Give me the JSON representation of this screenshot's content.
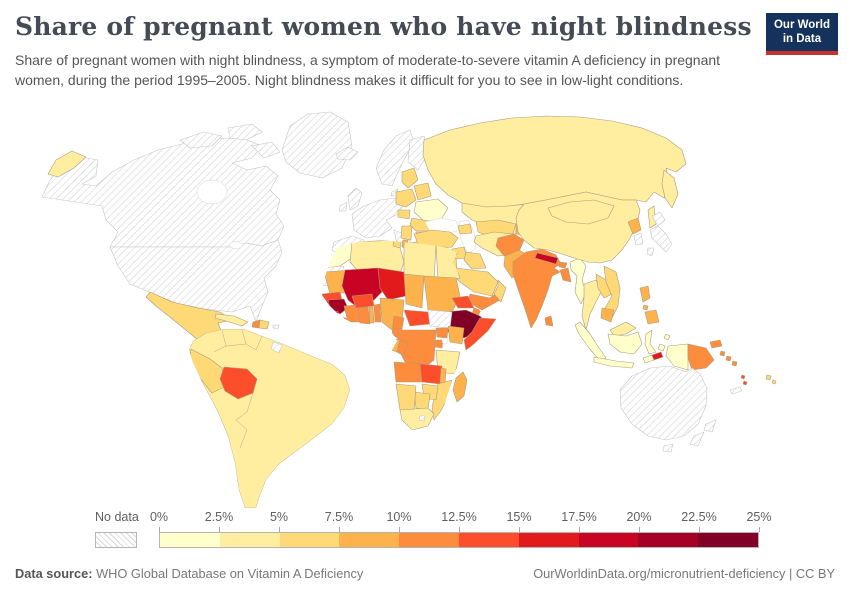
{
  "header": {
    "title": "Share of pregnant women who have night blindness",
    "subtitle": "Share of pregnant women with night blindness, a symptom of moderate-to-severe vitamin A deficiency in pregnant women, during the period 1995–2005. Night blindness makes it difficult for you to see in low-light conditions.",
    "logo": {
      "line1": "Our World",
      "line2": "in Data",
      "bg_color": "#14325c",
      "bar_color": "#c4342c"
    }
  },
  "legend": {
    "no_data_label": "No data",
    "tick_labels": [
      "0%",
      "2.5%",
      "5%",
      "7.5%",
      "10%",
      "12.5%",
      "15%",
      "17.5%",
      "20%",
      "22.5%",
      "25%"
    ]
  },
  "footer": {
    "source_label": "Data source:",
    "source_text": " WHO Global Database on Vitamin A Deficiency",
    "right_text": "OurWorldinData.org/micronutrient-deficiency | CC BY"
  },
  "chart_data": {
    "type": "choropleth",
    "title": "Share of pregnant women who have night blindness",
    "metric": "Share of pregnant women with night blindness (%)",
    "period": "1995–2005",
    "unit": "%",
    "bins": {
      "min": 0,
      "max": 25,
      "step": 2.5
    },
    "palette": [
      "#FFFFCC",
      "#FFEDA0",
      "#FED976",
      "#FEB24C",
      "#FD8D3C",
      "#FC4E2A",
      "#E31A1C",
      "#C80324",
      "#A50026",
      "#800026"
    ],
    "no_data_pattern": "diagonal-hatch",
    "note": "country values are bin-midpoint estimates read from map colors",
    "countries": {
      "canada": null,
      "united-states": null,
      "greenland": null,
      "iceland": null,
      "norway-sweden": null,
      "finland": null,
      "denmark": null,
      "united-kingdom": null,
      "ireland": null,
      "france-germany-benelux": null,
      "spain-portugal": null,
      "italy": null,
      "japan": null,
      "south-korea": null,
      "australia": null,
      "new-zealand": null,
      "new-caledonia": null,
      "western-sahara": null,
      "south-sudan": null,
      "french-guiana": null,
      "puerto-rico": null,
      "lesotho": null,
      "russia": 3.5,
      "kazakhstan": 3.5,
      "poland": 6,
      "baltics": 6,
      "belarus": 6,
      "ukraine": 1,
      "hungary": 6,
      "romania": 6,
      "bulgaria": 6,
      "serbia": 6,
      "albania": 8.5,
      "greece": 6,
      "turkey": 6,
      "caucasus": 6,
      "syria": 6,
      "iraq": 6,
      "jordan": 6,
      "saudi-arabia": 6,
      "yemen": 11,
      "oman": 6,
      "iran": 3.5,
      "afghanistan": 11,
      "pakistan": 8.5,
      "turkmenistan-uzbekistan": 6,
      "kyrgyzstan-tajikistan": 8.5,
      "india": 11,
      "nepal": 18.5,
      "bhutan": 11,
      "bangladesh": 11,
      "sri-lanka": 11,
      "myanmar": 1,
      "china": 3.5,
      "mongolia": 3.5,
      "north-korea": 8.5,
      "thailand": 3.5,
      "laos": 6,
      "vietnam": 6,
      "cambodia": 8.5,
      "malaysia": 3.5,
      "indonesia": 1,
      "philippines": 8.5,
      "timor-leste": 16,
      "papua-new-guinea": 11,
      "solomon-islands": 11,
      "vanuatu": 13.5,
      "fiji": 6,
      "mexico": 6,
      "guatemala": 8.5,
      "honduras": 8.5,
      "nicaragua": 6,
      "costa-rica": 6,
      "panama": 8.5,
      "cuba": 3.5,
      "jamaica": 6,
      "haiti": 11,
      "dominican-republic": 6,
      "brazil": 3.5,
      "peru": 6,
      "bolivia": 13.5,
      "morocco": 1,
      "algeria": 3.5,
      "tunisia": 6,
      "libya": 3.5,
      "egypt": 3.5,
      "mauritania": 8.5,
      "mali": 18.5,
      "niger": 16,
      "chad": 8.5,
      "sudan": 8.5,
      "eritrea": 13.5,
      "djibouti": 11,
      "ethiopia": 24,
      "somalia": 13.5,
      "senegal": 13.5,
      "guinea-bissau": 16,
      "guinea": 21,
      "sierra-leone": 16,
      "liberia": 13.5,
      "cote-divoire": 11,
      "burkina-faso": 13.5,
      "ghana": 11,
      "togo": 8.5,
      "benin": 11,
      "nigeria": 8.5,
      "cameroon": 11,
      "central-african-republic": 13.5,
      "uganda": 11,
      "kenya": 8.5,
      "rwanda-burundi": 11,
      "dr-congo": 11,
      "congo": 11,
      "gabon": 8.5,
      "tanzania": 3.5,
      "angola": 11,
      "zambia": 13.5,
      "malawi": 8.5,
      "mozambique": 6,
      "zimbabwe": 6,
      "botswana": 6,
      "namibia": 6,
      "south-africa": 3.5,
      "madagascar": 8.5
    },
    "no_data_countries": [
      "Canada",
      "United States",
      "Greenland",
      "Iceland",
      "Norway",
      "Sweden",
      "Finland",
      "Denmark",
      "United Kingdom",
      "Ireland",
      "France",
      "Germany",
      "Belgium",
      "Netherlands",
      "Spain",
      "Portugal",
      "Italy",
      "Switzerland",
      "Austria",
      "Japan",
      "South Korea",
      "Australia",
      "New Zealand",
      "New Caledonia",
      "Western Sahara",
      "South Sudan",
      "French Guiana",
      "Puerto Rico",
      "Lesotho"
    ]
  }
}
